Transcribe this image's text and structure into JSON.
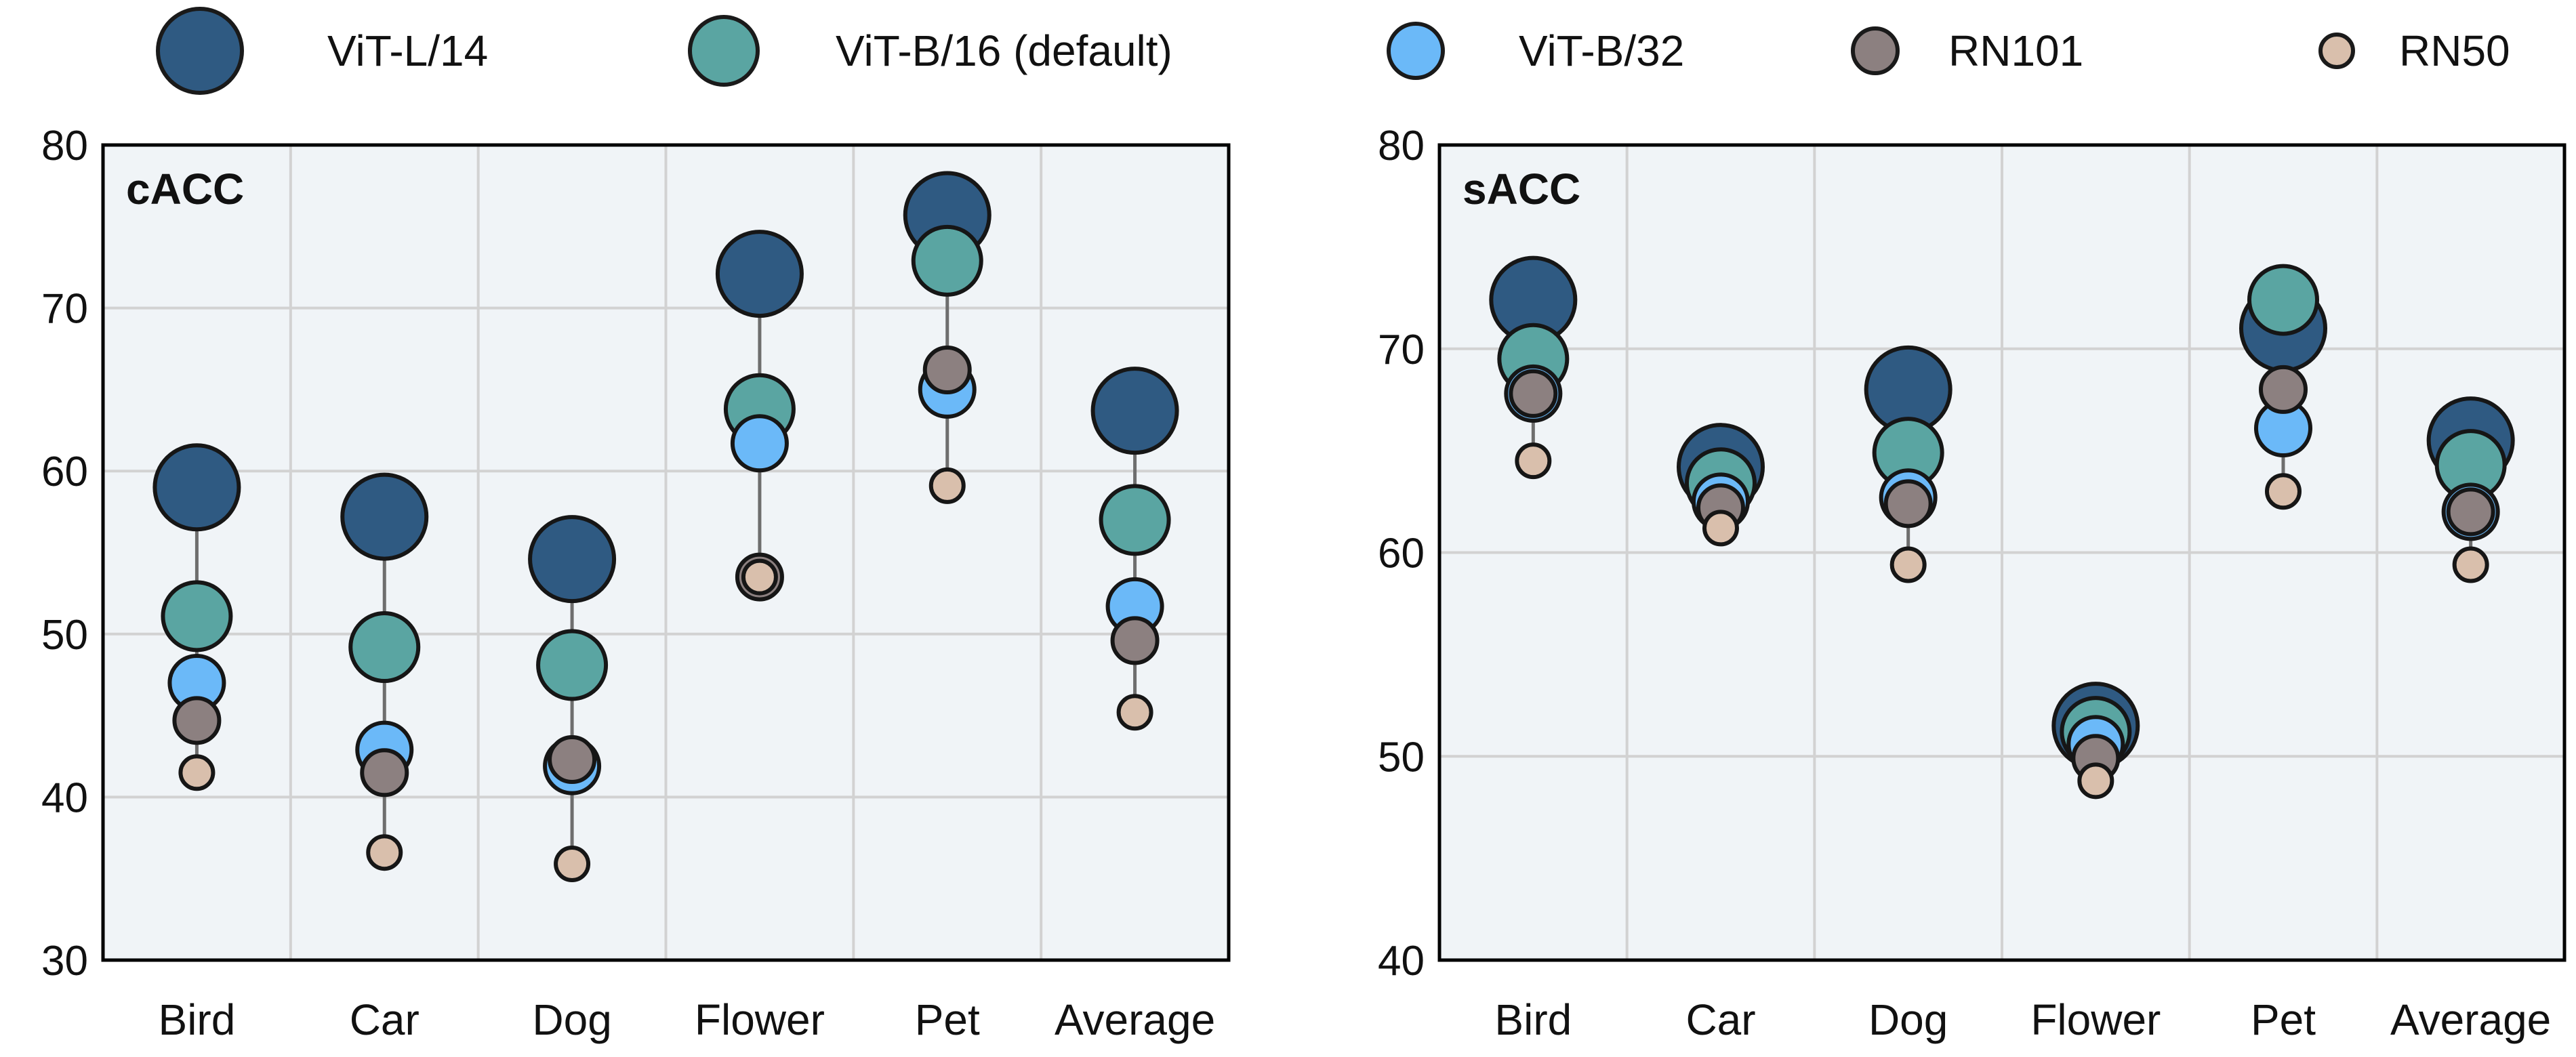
{
  "legend": [
    {
      "name": "ViT-L/14",
      "color": "#2f5a82"
    },
    {
      "name": "ViT-B/16 (default)",
      "color": "#5aa5a2"
    },
    {
      "name": "ViT-B/32",
      "color": "#6bb9f8"
    },
    {
      "name": "RN101",
      "color": "#8c8080"
    },
    {
      "name": "RN50",
      "color": "#d9bfac"
    }
  ],
  "chart_data": [
    {
      "type": "scatter",
      "title": "cACC",
      "categories": [
        "Bird",
        "Car",
        "Dog",
        "Flower",
        "Pet",
        "Average"
      ],
      "ylim": [
        30,
        80
      ],
      "yticks": [
        30,
        40,
        50,
        60,
        70,
        80
      ],
      "grid": true,
      "series": [
        {
          "name": "ViT-L/14",
          "values": [
            59.0,
            57.2,
            54.6,
            72.1,
            75.7,
            63.7
          ]
        },
        {
          "name": "ViT-B/16 (default)",
          "values": [
            51.1,
            49.2,
            48.1,
            63.8,
            72.9,
            57.0
          ]
        },
        {
          "name": "ViT-B/32",
          "values": [
            47.0,
            42.9,
            41.9,
            61.7,
            65.0,
            51.7
          ]
        },
        {
          "name": "RN101",
          "values": [
            44.7,
            41.5,
            42.3,
            53.5,
            66.2,
            49.6
          ]
        },
        {
          "name": "RN50",
          "values": [
            41.5,
            36.6,
            35.9,
            53.5,
            59.1,
            45.2
          ]
        }
      ]
    },
    {
      "type": "scatter",
      "title": "sACC",
      "categories": [
        "Bird",
        "Car",
        "Dog",
        "Flower",
        "Pet",
        "Average"
      ],
      "ylim": [
        40,
        80
      ],
      "yticks": [
        40,
        50,
        60,
        70,
        80
      ],
      "grid": true,
      "series": [
        {
          "name": "ViT-L/14",
          "values": [
            72.4,
            64.2,
            68.0,
            51.5,
            71.0,
            65.5
          ]
        },
        {
          "name": "ViT-B/16 (default)",
          "values": [
            69.5,
            63.4,
            64.9,
            51.2,
            72.4,
            64.3
          ]
        },
        {
          "name": "ViT-B/32",
          "values": [
            67.8,
            62.5,
            62.7,
            50.6,
            66.1,
            62.0
          ]
        },
        {
          "name": "RN101",
          "values": [
            67.8,
            62.2,
            62.4,
            49.9,
            68.0,
            62.0
          ]
        },
        {
          "name": "RN50",
          "values": [
            64.5,
            61.2,
            59.4,
            48.8,
            63.0,
            59.4
          ]
        }
      ]
    }
  ]
}
